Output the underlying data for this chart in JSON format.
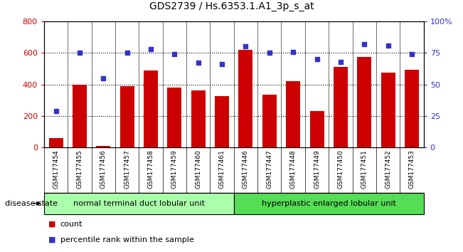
{
  "title": "GDS2739 / Hs.6353.1.A1_3p_s_at",
  "samples": [
    "GSM177454",
    "GSM177455",
    "GSM177456",
    "GSM177457",
    "GSM177458",
    "GSM177459",
    "GSM177460",
    "GSM177461",
    "GSM177446",
    "GSM177447",
    "GSM177448",
    "GSM177449",
    "GSM177450",
    "GSM177451",
    "GSM177452",
    "GSM177453"
  ],
  "counts": [
    60,
    400,
    10,
    390,
    490,
    380,
    360,
    325,
    620,
    335,
    420,
    230,
    510,
    575,
    475,
    495
  ],
  "percentiles": [
    29,
    75,
    55,
    75,
    78,
    74,
    67,
    66,
    80,
    75,
    76,
    70,
    68,
    82,
    81,
    74
  ],
  "bar_color": "#cc0000",
  "dot_color": "#3333cc",
  "group1_label": "normal terminal duct lobular unit",
  "group2_label": "hyperplastic enlarged lobular unit",
  "group1_color": "#aaeea a",
  "group2_color": "#55dd55",
  "group1_count": 8,
  "group2_count": 8,
  "ylim_left": [
    0,
    800
  ],
  "ylim_right": [
    0,
    100
  ],
  "yticks_left": [
    0,
    200,
    400,
    600,
    800
  ],
  "yticks_right": [
    0,
    25,
    50,
    75,
    100
  ],
  "yticklabels_right": [
    "0",
    "25",
    "50",
    "75",
    "100%"
  ],
  "ylabel_left_color": "#cc0000",
  "ylabel_right_color": "#3333cc",
  "tick_area_color": "#cccccc",
  "legend_count_color": "#cc0000",
  "legend_pct_color": "#3333cc"
}
